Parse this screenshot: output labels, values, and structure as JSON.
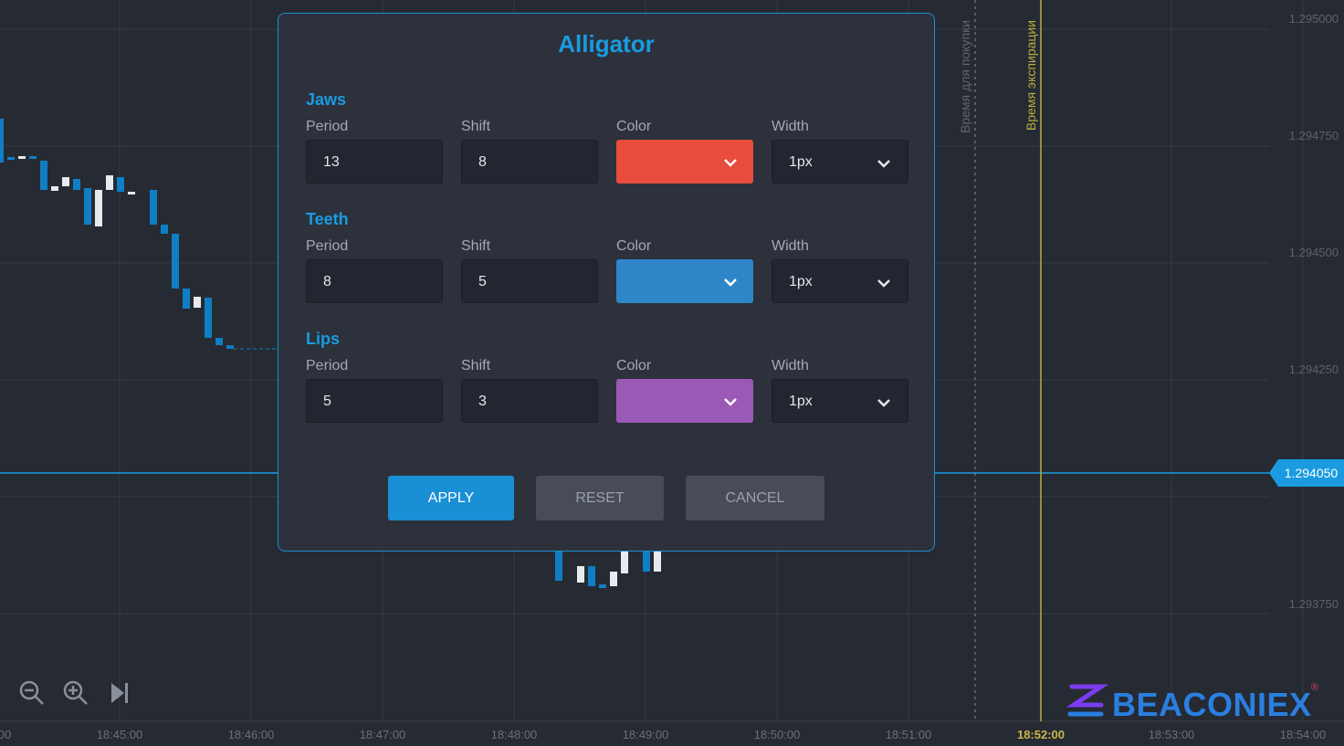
{
  "chart": {
    "price_labels": [
      "1.295000",
      "1.294750",
      "1.294500",
      "1.294250",
      "1.293750"
    ],
    "current_price": "1.294050",
    "time_labels": [
      "00",
      "18:45:00",
      "18:46:00",
      "18:47:00",
      "18:48:00",
      "18:49:00",
      "18:50:00",
      "18:51:00",
      "18:52:00",
      "18:53:00",
      "18:54:00"
    ],
    "markers": [
      "Время для покупки",
      "Время экспирации"
    ]
  },
  "dialog": {
    "title": "Alligator",
    "sections": [
      {
        "name": "Jaws",
        "fields": [
          {
            "label": "Period",
            "value": "13"
          },
          {
            "label": "Shift",
            "value": "8"
          },
          {
            "label": "Color",
            "color": "#e74c3c"
          },
          {
            "label": "Width",
            "value": "1px"
          }
        ]
      },
      {
        "name": "Teeth",
        "fields": [
          {
            "label": "Period",
            "value": "8"
          },
          {
            "label": "Shift",
            "value": "5"
          },
          {
            "label": "Color",
            "color": "#2e86c8"
          },
          {
            "label": "Width",
            "value": "1px"
          }
        ]
      },
      {
        "name": "Lips",
        "fields": [
          {
            "label": "Period",
            "value": "5"
          },
          {
            "label": "Shift",
            "value": "3"
          },
          {
            "label": "Color",
            "color": "#9b59b6"
          },
          {
            "label": "Width",
            "value": "1px"
          }
        ]
      }
    ],
    "buttons": [
      "APPLY",
      "RESET",
      "CANCEL"
    ]
  },
  "logo": {
    "text": "BEACONIEX",
    "mark": "®"
  }
}
